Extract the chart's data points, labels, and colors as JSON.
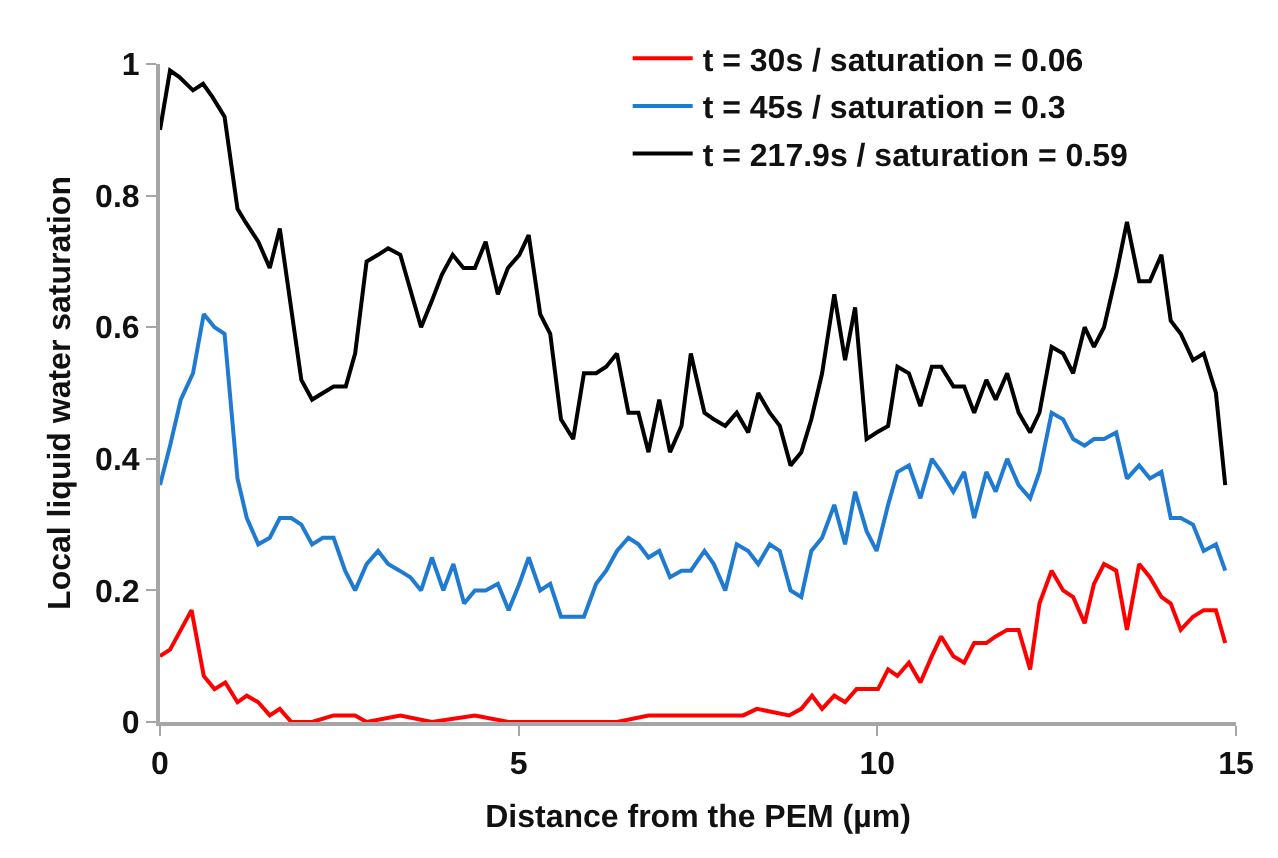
{
  "chart_data": {
    "type": "line",
    "xlabel": "Distance from the PEM (µm)",
    "ylabel": "Local liquid water saturation",
    "xlim": [
      0,
      15
    ],
    "xticks": [
      0,
      5,
      10,
      15
    ],
    "ylim": [
      0,
      1
    ],
    "yticks": [
      0,
      0.2,
      0.4,
      0.6,
      0.8,
      1
    ],
    "legend": "top right",
    "marker": "none",
    "line_style": "solid",
    "series": [
      {
        "name": "t = 30s / saturation = 0.06",
        "color": "#ff0000",
        "x": [
          0,
          0.14,
          0.29,
          0.44,
          0.61,
          0.76,
          0.91,
          1.08,
          1.21,
          1.37,
          1.53,
          1.67,
          1.83,
          2.12,
          2.42,
          2.72,
          2.88,
          3.35,
          3.79,
          4.39,
          4.86,
          5.44,
          5.91,
          6.37,
          6.81,
          7.27,
          7.68,
          8.13,
          8.32,
          8.77,
          8.94,
          9.09,
          9.23,
          9.4,
          9.55,
          9.71,
          9.87,
          10.01,
          10.15,
          10.28,
          10.44,
          10.6,
          10.76,
          10.89,
          11.06,
          11.21,
          11.35,
          11.52,
          11.65,
          11.81,
          11.97,
          12.13,
          12.26,
          12.43,
          12.59,
          12.73,
          12.89,
          13.02,
          13.16,
          13.33,
          13.48,
          13.65,
          13.8,
          13.96,
          14.09,
          14.23,
          14.4,
          14.55,
          14.72,
          14.85
        ],
        "values": [
          0.1,
          0.11,
          0.14,
          0.17,
          0.07,
          0.05,
          0.06,
          0.03,
          0.04,
          0.03,
          0.01,
          0.02,
          0.0,
          0.0,
          0.01,
          0.01,
          0.0,
          0.01,
          0.0,
          0.01,
          0.0,
          0.0,
          0.0,
          0.0,
          0.01,
          0.01,
          0.01,
          0.01,
          0.02,
          0.01,
          0.02,
          0.04,
          0.02,
          0.04,
          0.03,
          0.05,
          0.05,
          0.05,
          0.08,
          0.07,
          0.09,
          0.06,
          0.1,
          0.13,
          0.1,
          0.09,
          0.12,
          0.12,
          0.13,
          0.14,
          0.14,
          0.08,
          0.18,
          0.23,
          0.2,
          0.19,
          0.15,
          0.21,
          0.24,
          0.23,
          0.14,
          0.24,
          0.22,
          0.19,
          0.18,
          0.14,
          0.16,
          0.17,
          0.17,
          0.12
        ]
      },
      {
        "name": "t = 45s / saturation = 0.3",
        "color": "#1f7bd1",
        "x": [
          0,
          0.14,
          0.29,
          0.46,
          0.61,
          0.76,
          0.9,
          1.08,
          1.21,
          1.37,
          1.53,
          1.67,
          1.83,
          1.97,
          2.12,
          2.27,
          2.42,
          2.58,
          2.72,
          2.88,
          3.04,
          3.18,
          3.34,
          3.49,
          3.64,
          3.79,
          3.95,
          4.09,
          4.24,
          4.39,
          4.54,
          4.71,
          4.86,
          5.01,
          5.14,
          5.3,
          5.44,
          5.59,
          5.76,
          5.91,
          6.08,
          6.22,
          6.37,
          6.53,
          6.67,
          6.81,
          6.96,
          7.11,
          7.27,
          7.4,
          7.59,
          7.72,
          7.88,
          8.04,
          8.2,
          8.34,
          8.5,
          8.64,
          8.79,
          8.94,
          9.08,
          9.23,
          9.4,
          9.55,
          9.69,
          9.85,
          9.99,
          10.15,
          10.28,
          10.44,
          10.6,
          10.76,
          10.89,
          11.06,
          11.21,
          11.35,
          11.52,
          11.65,
          11.81,
          11.97,
          12.13,
          12.26,
          12.43,
          12.59,
          12.73,
          12.89,
          13.02,
          13.16,
          13.33,
          13.48,
          13.65,
          13.8,
          13.96,
          14.09,
          14.23,
          14.4,
          14.55,
          14.72,
          14.85
        ],
        "values": [
          0.36,
          0.42,
          0.49,
          0.53,
          0.62,
          0.6,
          0.59,
          0.37,
          0.31,
          0.27,
          0.28,
          0.31,
          0.31,
          0.3,
          0.27,
          0.28,
          0.28,
          0.23,
          0.2,
          0.24,
          0.26,
          0.24,
          0.23,
          0.22,
          0.2,
          0.25,
          0.2,
          0.24,
          0.18,
          0.2,
          0.2,
          0.21,
          0.17,
          0.21,
          0.25,
          0.2,
          0.21,
          0.16,
          0.16,
          0.16,
          0.21,
          0.23,
          0.26,
          0.28,
          0.27,
          0.25,
          0.26,
          0.22,
          0.23,
          0.23,
          0.26,
          0.24,
          0.2,
          0.27,
          0.26,
          0.24,
          0.27,
          0.26,
          0.2,
          0.19,
          0.26,
          0.28,
          0.33,
          0.27,
          0.35,
          0.29,
          0.26,
          0.33,
          0.38,
          0.39,
          0.34,
          0.4,
          0.38,
          0.35,
          0.38,
          0.31,
          0.38,
          0.35,
          0.4,
          0.36,
          0.34,
          0.38,
          0.47,
          0.46,
          0.43,
          0.42,
          0.43,
          0.43,
          0.44,
          0.37,
          0.39,
          0.37,
          0.38,
          0.31,
          0.31,
          0.3,
          0.26,
          0.27,
          0.23
        ]
      },
      {
        "name": "t = 217.9s / saturation = 0.59",
        "color": "#000000",
        "x": [
          0,
          0.14,
          0.27,
          0.46,
          0.6,
          0.73,
          0.9,
          1.08,
          1.19,
          1.37,
          1.53,
          1.67,
          1.97,
          2.12,
          2.42,
          2.59,
          2.72,
          2.88,
          3.04,
          3.18,
          3.35,
          3.64,
          3.79,
          3.93,
          4.08,
          4.23,
          4.39,
          4.54,
          4.71,
          4.85,
          5.01,
          5.14,
          5.3,
          5.44,
          5.59,
          5.76,
          5.91,
          6.08,
          6.22,
          6.37,
          6.53,
          6.67,
          6.81,
          6.96,
          7.11,
          7.27,
          7.4,
          7.59,
          7.72,
          7.88,
          8.04,
          8.2,
          8.34,
          8.5,
          8.64,
          8.79,
          8.94,
          9.08,
          9.23,
          9.4,
          9.55,
          9.69,
          9.85,
          9.99,
          10.15,
          10.28,
          10.44,
          10.6,
          10.76,
          10.89,
          11.06,
          11.21,
          11.35,
          11.52,
          11.65,
          11.81,
          11.97,
          12.13,
          12.26,
          12.43,
          12.59,
          12.73,
          12.89,
          13.02,
          13.16,
          13.33,
          13.48,
          13.65,
          13.8,
          13.96,
          14.09,
          14.23,
          14.4,
          14.55,
          14.72,
          14.85
        ],
        "values": [
          0.9,
          0.99,
          0.98,
          0.96,
          0.97,
          0.95,
          0.92,
          0.78,
          0.76,
          0.73,
          0.69,
          0.75,
          0.52,
          0.49,
          0.51,
          0.51,
          0.56,
          0.7,
          0.71,
          0.72,
          0.71,
          0.6,
          0.64,
          0.68,
          0.71,
          0.69,
          0.69,
          0.73,
          0.65,
          0.69,
          0.71,
          0.74,
          0.62,
          0.59,
          0.46,
          0.43,
          0.53,
          0.53,
          0.54,
          0.56,
          0.47,
          0.47,
          0.41,
          0.49,
          0.41,
          0.45,
          0.56,
          0.47,
          0.46,
          0.45,
          0.47,
          0.44,
          0.5,
          0.47,
          0.45,
          0.39,
          0.41,
          0.46,
          0.53,
          0.65,
          0.55,
          0.63,
          0.43,
          0.44,
          0.45,
          0.54,
          0.53,
          0.48,
          0.54,
          0.54,
          0.51,
          0.51,
          0.47,
          0.52,
          0.49,
          0.53,
          0.47,
          0.44,
          0.47,
          0.57,
          0.56,
          0.53,
          0.6,
          0.57,
          0.6,
          0.68,
          0.76,
          0.67,
          0.67,
          0.71,
          0.61,
          0.59,
          0.55,
          0.56,
          0.5,
          0.36
        ]
      }
    ]
  }
}
